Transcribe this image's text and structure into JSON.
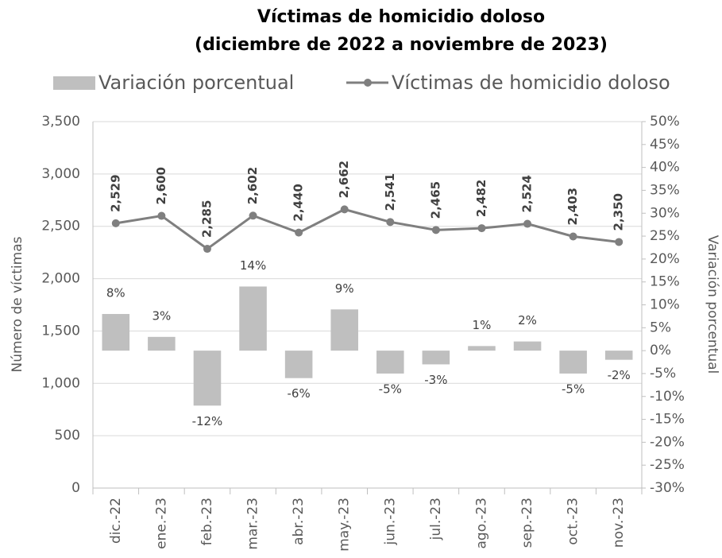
{
  "chart_data": {
    "type": "combo",
    "title": "Víctimas de homicidio doloso",
    "subtitle": "(diciembre de 2022 a noviembre de 2023)",
    "y_label": "Número de víctimas",
    "y2_label": "Variación porcentual",
    "categories": [
      "dic.-22",
      "ene.-23",
      "feb.-23",
      "mar.-23",
      "abr.-23",
      "may.-23",
      "jun.-23",
      "jul.-23",
      "ago.-23",
      "sep.-23",
      "oct.-23",
      "nov.-23"
    ],
    "series": [
      {
        "name": "Variación porcentual",
        "type": "bar",
        "axis": "y2",
        "color": "#bfbfbf",
        "values": [
          8,
          3,
          -12,
          14,
          -6,
          9,
          -5,
          -3,
          1,
          2,
          -5,
          -2
        ],
        "value_labels": [
          "8%",
          "3%",
          "-12%",
          "14%",
          "-6%",
          "9%",
          "-5%",
          "-3%",
          "1%",
          "2%",
          "-5%",
          "-2%"
        ]
      },
      {
        "name": "Víctimas de homicidio doloso",
        "type": "line",
        "color": "#7f7f7f",
        "values": [
          2529,
          2600,
          2285,
          2602,
          2440,
          2662,
          2541,
          2465,
          2482,
          2524,
          2403,
          2350
        ],
        "value_labels": [
          "2,529",
          "2,600",
          "2,285",
          "2,602",
          "2,440",
          "2,662",
          "2,541",
          "2,465",
          "2,482",
          "2,524",
          "2,403",
          "2,350"
        ]
      }
    ],
    "ylim": [
      0,
      3500
    ],
    "yticks": [
      0,
      {
        "value": 500,
        "label": "500"
      },
      {
        "value": 1000,
        "label": "1,000"
      },
      {
        "value": 1500,
        "label": "1,500"
      },
      {
        "value": 2000,
        "label": "2,000"
      },
      {
        "value": 2500,
        "label": "2,500"
      },
      {
        "value": 3000,
        "label": "3,000"
      },
      {
        "value": 3500,
        "label": "3,500"
      }
    ],
    "y2lim": [
      -30,
      50
    ],
    "y2ticks": [
      {
        "value": -30,
        "label": "-30%"
      },
      {
        "value": -25,
        "label": "-25%"
      },
      {
        "value": -20,
        "label": "-20%"
      },
      {
        "value": -15,
        "label": "-15%"
      },
      {
        "value": -10,
        "label": "-10%"
      },
      {
        "value": -5,
        "label": "-5%"
      },
      {
        "value": 0,
        "label": "0%"
      },
      {
        "value": 5,
        "label": "5%"
      },
      {
        "value": 10,
        "label": "10%"
      },
      {
        "value": 15,
        "label": "15%"
      },
      {
        "value": 20,
        "label": "20%"
      },
      {
        "value": 25,
        "label": "25%"
      },
      {
        "value": 30,
        "label": "30%"
      },
      {
        "value": 35,
        "label": "35%"
      },
      {
        "value": 40,
        "label": "40%"
      },
      {
        "value": 45,
        "label": "45%"
      },
      {
        "value": 50,
        "label": "50%"
      }
    ],
    "grid": true
  }
}
